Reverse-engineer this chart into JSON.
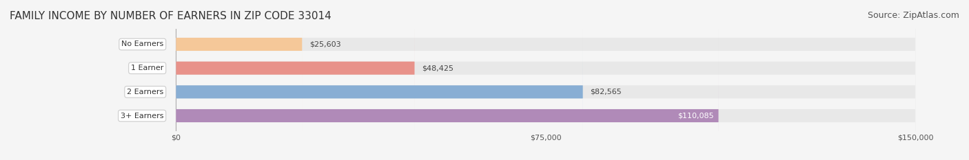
{
  "title": "FAMILY INCOME BY NUMBER OF EARNERS IN ZIP CODE 33014",
  "source": "Source: ZipAtlas.com",
  "categories": [
    "No Earners",
    "1 Earner",
    "2 Earners",
    "3+ Earners"
  ],
  "values": [
    25603,
    48425,
    82565,
    110085
  ],
  "bar_colors": [
    "#f5c899",
    "#e8928a",
    "#88aed4",
    "#b08ab8"
  ],
  "bar_bg_color": "#e8e8e8",
  "label_colors": [
    "#555555",
    "#555555",
    "#555555",
    "#ffffff"
  ],
  "label_bg": "#ffffff",
  "xlim": [
    0,
    150000
  ],
  "xticks": [
    0,
    75000,
    150000
  ],
  "xtick_labels": [
    "$0",
    "$75,000",
    "$150,000"
  ],
  "title_fontsize": 11,
  "source_fontsize": 9,
  "bar_height": 0.55,
  "background_color": "#f5f5f5",
  "value_labels": [
    "$25,603",
    "$48,425",
    "$82,565",
    "$110,085"
  ]
}
